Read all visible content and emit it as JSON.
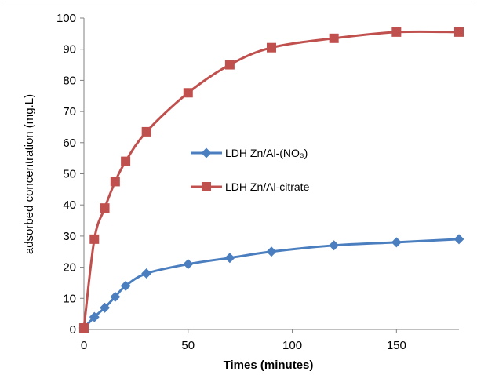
{
  "chart_data": {
    "type": "line",
    "title": "",
    "xlabel": "Times (minutes)",
    "ylabel": "adsorbed concentration  (mg.L)",
    "xlim": [
      0,
      180
    ],
    "ylim": [
      0,
      100
    ],
    "x_ticks": [
      "0",
      "50",
      "100",
      "150"
    ],
    "x_tick_values": [
      0,
      50,
      100,
      150
    ],
    "y_ticks": [
      "0",
      "10",
      "20",
      "30",
      "40",
      "50",
      "60",
      "70",
      "80",
      "90",
      "100"
    ],
    "y_tick_values": [
      0,
      10,
      20,
      30,
      40,
      50,
      60,
      70,
      80,
      90,
      100
    ],
    "grid": false,
    "legend_position": "center-right",
    "series": [
      {
        "name": "LDH Zn/Al-(NO₃)",
        "color": "#4a7ebf",
        "marker": "diamond",
        "x": [
          0,
          5,
          10,
          15,
          20,
          30,
          50,
          70,
          90,
          120,
          150,
          180
        ],
        "y": [
          0.5,
          4,
          7,
          10.5,
          14,
          18,
          21,
          23,
          25,
          27,
          28,
          29
        ]
      },
      {
        "name": "LDH Zn/Al-citrate",
        "color": "#c0504d",
        "marker": "square",
        "x": [
          0,
          5,
          10,
          15,
          20,
          30,
          50,
          70,
          90,
          120,
          150,
          180
        ],
        "y": [
          0.5,
          29,
          39,
          47.5,
          54,
          63.5,
          76,
          85,
          90.5,
          93.5,
          95.5,
          95.5
        ]
      }
    ]
  }
}
